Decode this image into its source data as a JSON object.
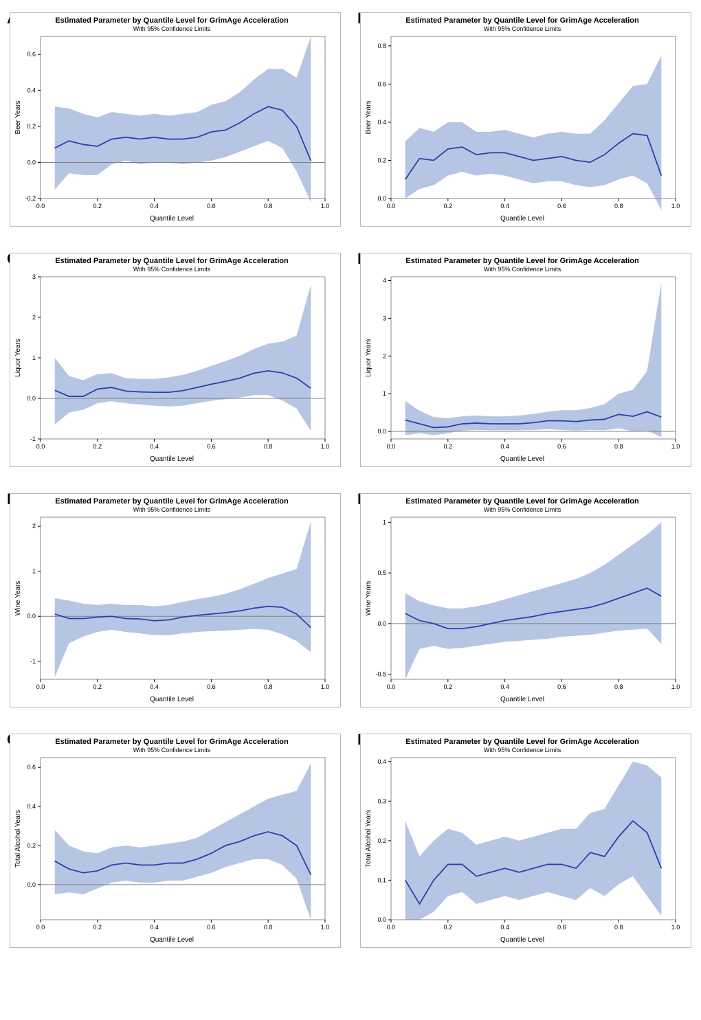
{
  "common": {
    "title": "Estimated Parameter by Quantile Level for GrimAge Acceleration",
    "subtitle": "With 95% Confidence Limits",
    "xlabel": "Quantile Level",
    "title_fontsize": 11,
    "subtitle_fontsize": 9,
    "label_fontsize": 10,
    "tick_fontsize": 9,
    "line_color": "#2a3fb0",
    "band_color": "#b6c5e3",
    "band_opacity": 1.0,
    "zero_line_color": "#808080",
    "frame_color": "#8a8a8a",
    "grid_color": "none",
    "background_color": "#ffffff",
    "line_width": 1.8,
    "x_ticks": [
      0.0,
      0.2,
      0.4,
      0.6,
      0.8,
      1.0
    ],
    "x_quantiles": [
      0.05,
      0.1,
      0.15,
      0.2,
      0.25,
      0.3,
      0.35,
      0.4,
      0.45,
      0.5,
      0.55,
      0.6,
      0.65,
      0.7,
      0.75,
      0.8,
      0.85,
      0.9,
      0.95
    ],
    "xlim": [
      0.0,
      1.0
    ]
  },
  "panels": [
    {
      "id": "A",
      "ylabel": "Beer Years",
      "ylim": [
        -0.2,
        0.7
      ],
      "y_ticks": [
        -0.2,
        0.0,
        0.2,
        0.4,
        0.6
      ],
      "mean": [
        0.08,
        0.12,
        0.1,
        0.09,
        0.13,
        0.14,
        0.13,
        0.14,
        0.13,
        0.13,
        0.14,
        0.17,
        0.18,
        0.22,
        0.27,
        0.31,
        0.29,
        0.2,
        0.01
      ],
      "lo": [
        -0.15,
        -0.06,
        -0.07,
        -0.07,
        -0.01,
        0.01,
        -0.01,
        0.0,
        0.0,
        -0.01,
        0.0,
        0.01,
        0.03,
        0.06,
        0.09,
        0.12,
        0.08,
        -0.05,
        -0.22
      ],
      "hi": [
        0.31,
        0.3,
        0.27,
        0.25,
        0.28,
        0.27,
        0.26,
        0.27,
        0.26,
        0.27,
        0.28,
        0.32,
        0.34,
        0.39,
        0.46,
        0.52,
        0.52,
        0.47,
        0.7
      ]
    },
    {
      "id": "B",
      "ylabel": "Beer Years",
      "ylim": [
        0.0,
        0.85
      ],
      "y_ticks": [
        0.0,
        0.2,
        0.4,
        0.6,
        0.8
      ],
      "mean": [
        0.1,
        0.21,
        0.2,
        0.26,
        0.27,
        0.23,
        0.24,
        0.24,
        0.22,
        0.2,
        0.21,
        0.22,
        0.2,
        0.19,
        0.23,
        0.29,
        0.34,
        0.33,
        0.12
      ],
      "lo": [
        0.0,
        0.05,
        0.07,
        0.12,
        0.14,
        0.12,
        0.13,
        0.12,
        0.1,
        0.08,
        0.09,
        0.09,
        0.07,
        0.06,
        0.07,
        0.1,
        0.12,
        0.08,
        -0.06
      ],
      "hi": [
        0.3,
        0.37,
        0.35,
        0.4,
        0.4,
        0.35,
        0.35,
        0.36,
        0.34,
        0.32,
        0.34,
        0.35,
        0.34,
        0.34,
        0.41,
        0.5,
        0.59,
        0.6,
        0.75
      ]
    },
    {
      "id": "C",
      "ylabel": "Liquor Years",
      "ylim": [
        -1.0,
        3.0
      ],
      "y_ticks": [
        -1,
        0,
        1,
        2,
        3
      ],
      "mean": [
        0.2,
        0.05,
        0.05,
        0.23,
        0.27,
        0.18,
        0.16,
        0.15,
        0.15,
        0.19,
        0.27,
        0.35,
        0.42,
        0.5,
        0.62,
        0.68,
        0.63,
        0.5,
        0.25
      ],
      "lo": [
        -0.65,
        -0.35,
        -0.28,
        -0.12,
        -0.07,
        -0.12,
        -0.15,
        -0.18,
        -0.2,
        -0.18,
        -0.12,
        -0.06,
        -0.02,
        0.02,
        0.08,
        0.08,
        -0.05,
        -0.25,
        -0.8
      ],
      "hi": [
        1.0,
        0.55,
        0.45,
        0.6,
        0.62,
        0.5,
        0.48,
        0.48,
        0.52,
        0.58,
        0.68,
        0.8,
        0.92,
        1.05,
        1.22,
        1.35,
        1.4,
        1.55,
        2.8
      ]
    },
    {
      "id": "D",
      "ylabel": "Liquor Years",
      "ylim": [
        -0.2,
        4.1
      ],
      "y_ticks": [
        0,
        1,
        2,
        3,
        4
      ],
      "mean": [
        0.3,
        0.2,
        0.1,
        0.12,
        0.2,
        0.22,
        0.2,
        0.2,
        0.2,
        0.23,
        0.28,
        0.28,
        0.26,
        0.3,
        0.32,
        0.45,
        0.4,
        0.52,
        0.38
      ],
      "lo": [
        -0.1,
        -0.05,
        -0.1,
        -0.05,
        0.02,
        0.04,
        0.03,
        0.03,
        0.03,
        0.04,
        0.06,
        0.04,
        0.02,
        0.04,
        0.03,
        0.08,
        0.0,
        0.02,
        -0.15
      ],
      "hi": [
        0.8,
        0.55,
        0.38,
        0.35,
        0.4,
        0.42,
        0.4,
        0.4,
        0.42,
        0.46,
        0.52,
        0.56,
        0.56,
        0.62,
        0.72,
        1.0,
        1.1,
        1.6,
        3.95
      ]
    },
    {
      "id": "E",
      "ylabel": "Wine Years",
      "ylim": [
        -1.4,
        2.2
      ],
      "y_ticks": [
        -1,
        0,
        1,
        2
      ],
      "mean": [
        0.05,
        -0.05,
        -0.05,
        -0.02,
        0.0,
        -0.05,
        -0.06,
        -0.1,
        -0.08,
        -0.02,
        0.02,
        0.05,
        0.08,
        0.12,
        0.18,
        0.22,
        0.2,
        0.05,
        -0.25
      ],
      "lo": [
        -1.35,
        -0.6,
        -0.45,
        -0.35,
        -0.3,
        -0.35,
        -0.38,
        -0.42,
        -0.42,
        -0.38,
        -0.35,
        -0.33,
        -0.32,
        -0.3,
        -0.28,
        -0.3,
        -0.4,
        -0.55,
        -0.8
      ],
      "hi": [
        0.4,
        0.35,
        0.28,
        0.25,
        0.28,
        0.25,
        0.25,
        0.22,
        0.25,
        0.32,
        0.38,
        0.43,
        0.5,
        0.6,
        0.72,
        0.85,
        0.95,
        1.05,
        2.1
      ]
    },
    {
      "id": "F",
      "ylabel": "Wine Years",
      "ylim": [
        -0.55,
        1.05
      ],
      "y_ticks": [
        -0.5,
        0.0,
        0.5,
        1.0
      ],
      "mean": [
        0.1,
        0.03,
        0.0,
        -0.05,
        -0.05,
        -0.03,
        0.0,
        0.03,
        0.05,
        0.07,
        0.1,
        0.12,
        0.14,
        0.16,
        0.2,
        0.25,
        0.3,
        0.35,
        0.27
      ],
      "lo": [
        -0.55,
        -0.25,
        -0.22,
        -0.25,
        -0.24,
        -0.22,
        -0.2,
        -0.18,
        -0.17,
        -0.16,
        -0.15,
        -0.13,
        -0.12,
        -0.11,
        -0.09,
        -0.07,
        -0.06,
        -0.05,
        -0.2
      ],
      "hi": [
        0.3,
        0.22,
        0.18,
        0.15,
        0.15,
        0.17,
        0.2,
        0.24,
        0.28,
        0.32,
        0.36,
        0.4,
        0.44,
        0.5,
        0.58,
        0.68,
        0.78,
        0.88,
        1.0
      ]
    },
    {
      "id": "G",
      "ylabel": "Total Alcohol Years",
      "ylim": [
        -0.18,
        0.65
      ],
      "y_ticks": [
        0.0,
        0.2,
        0.4,
        0.6
      ],
      "mean": [
        0.12,
        0.08,
        0.06,
        0.07,
        0.1,
        0.11,
        0.1,
        0.1,
        0.11,
        0.11,
        0.13,
        0.16,
        0.2,
        0.22,
        0.25,
        0.27,
        0.25,
        0.2,
        0.05
      ],
      "lo": [
        -0.05,
        -0.04,
        -0.05,
        -0.02,
        0.01,
        0.02,
        0.01,
        0.01,
        0.02,
        0.02,
        0.04,
        0.06,
        0.09,
        0.11,
        0.13,
        0.13,
        0.1,
        0.03,
        -0.18
      ],
      "hi": [
        0.28,
        0.2,
        0.17,
        0.16,
        0.19,
        0.2,
        0.19,
        0.2,
        0.21,
        0.22,
        0.24,
        0.28,
        0.32,
        0.36,
        0.4,
        0.44,
        0.46,
        0.48,
        0.62
      ]
    },
    {
      "id": "H",
      "ylabel": "Total Alcohol Years",
      "ylim": [
        0.0,
        0.41
      ],
      "y_ticks": [
        0.0,
        0.1,
        0.2,
        0.3,
        0.4
      ],
      "mean": [
        0.1,
        0.04,
        0.1,
        0.14,
        0.14,
        0.11,
        0.12,
        0.13,
        0.12,
        0.13,
        0.14,
        0.14,
        0.13,
        0.17,
        0.16,
        0.21,
        0.25,
        0.22,
        0.13
      ],
      "lo": [
        0.0,
        0.0,
        0.02,
        0.06,
        0.07,
        0.04,
        0.05,
        0.06,
        0.05,
        0.06,
        0.07,
        0.06,
        0.05,
        0.08,
        0.06,
        0.09,
        0.11,
        0.06,
        0.01
      ],
      "hi": [
        0.25,
        0.16,
        0.2,
        0.23,
        0.22,
        0.19,
        0.2,
        0.21,
        0.2,
        0.21,
        0.22,
        0.23,
        0.23,
        0.27,
        0.28,
        0.34,
        0.4,
        0.39,
        0.36
      ]
    }
  ]
}
